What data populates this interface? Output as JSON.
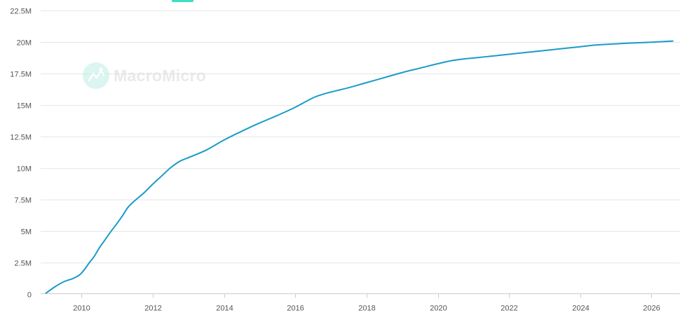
{
  "colors": {
    "series": "#1a9bc9",
    "legend_swatch": "#3ee0c0",
    "grid": "#e6e6e6",
    "watermark": "#d9d9d9"
  },
  "watermark": {
    "text": "MacroMicro",
    "icon": "macromicro-logo-icon"
  },
  "chart_data": {
    "type": "line",
    "title": "",
    "xlabel": "",
    "ylabel": "",
    "xlim": [
      2008.85,
      2026.8
    ],
    "ylim": [
      0,
      22500000
    ],
    "x_ticks": [
      2010,
      2012,
      2014,
      2016,
      2018,
      2020,
      2022,
      2024,
      2026
    ],
    "x_tick_labels": [
      "2010",
      "2012",
      "2014",
      "2016",
      "2018",
      "2020",
      "2022",
      "2024",
      "2026"
    ],
    "y_ticks": [
      0,
      2500000,
      5000000,
      7500000,
      10000000,
      12500000,
      15000000,
      17500000,
      20000000,
      22500000
    ],
    "y_tick_labels": [
      "0",
      "2.5M",
      "5M",
      "7.5M",
      "10M",
      "12.5M",
      "15M",
      "17.5M",
      "20M",
      "22.5M"
    ],
    "grid": "horizontal",
    "series": [
      {
        "points": [
          [
            2009.0,
            50000
          ],
          [
            2009.25,
            550000
          ],
          [
            2009.5,
            950000
          ],
          [
            2009.75,
            1200000
          ],
          [
            2009.92,
            1450000
          ],
          [
            2010.0,
            1650000
          ],
          [
            2010.1,
            2000000
          ],
          [
            2010.2,
            2400000
          ],
          [
            2010.35,
            2950000
          ],
          [
            2010.5,
            3650000
          ],
          [
            2010.65,
            4250000
          ],
          [
            2010.8,
            4850000
          ],
          [
            2011.0,
            5600000
          ],
          [
            2011.15,
            6200000
          ],
          [
            2011.3,
            6850000
          ],
          [
            2011.5,
            7400000
          ],
          [
            2011.75,
            8000000
          ],
          [
            2012.0,
            8700000
          ],
          [
            2012.25,
            9350000
          ],
          [
            2012.5,
            10000000
          ],
          [
            2012.75,
            10500000
          ],
          [
            2013.0,
            10800000
          ],
          [
            2013.5,
            11400000
          ],
          [
            2014.0,
            12200000
          ],
          [
            2014.5,
            12900000
          ],
          [
            2015.0,
            13550000
          ],
          [
            2015.5,
            14150000
          ],
          [
            2016.0,
            14800000
          ],
          [
            2016.5,
            15550000
          ],
          [
            2016.8,
            15850000
          ],
          [
            2017.0,
            16000000
          ],
          [
            2017.5,
            16350000
          ],
          [
            2018.0,
            16750000
          ],
          [
            2018.5,
            17150000
          ],
          [
            2019.0,
            17550000
          ],
          [
            2019.5,
            17900000
          ],
          [
            2020.0,
            18250000
          ],
          [
            2020.4,
            18500000
          ],
          [
            2020.8,
            18650000
          ],
          [
            2021.0,
            18700000
          ],
          [
            2021.5,
            18850000
          ],
          [
            2022.0,
            19000000
          ],
          [
            2022.5,
            19150000
          ],
          [
            2023.0,
            19300000
          ],
          [
            2023.5,
            19450000
          ],
          [
            2024.0,
            19600000
          ],
          [
            2024.4,
            19730000
          ],
          [
            2024.8,
            19800000
          ],
          [
            2025.0,
            19830000
          ],
          [
            2025.5,
            19900000
          ],
          [
            2026.0,
            19960000
          ],
          [
            2026.6,
            20050000
          ]
        ]
      }
    ]
  }
}
